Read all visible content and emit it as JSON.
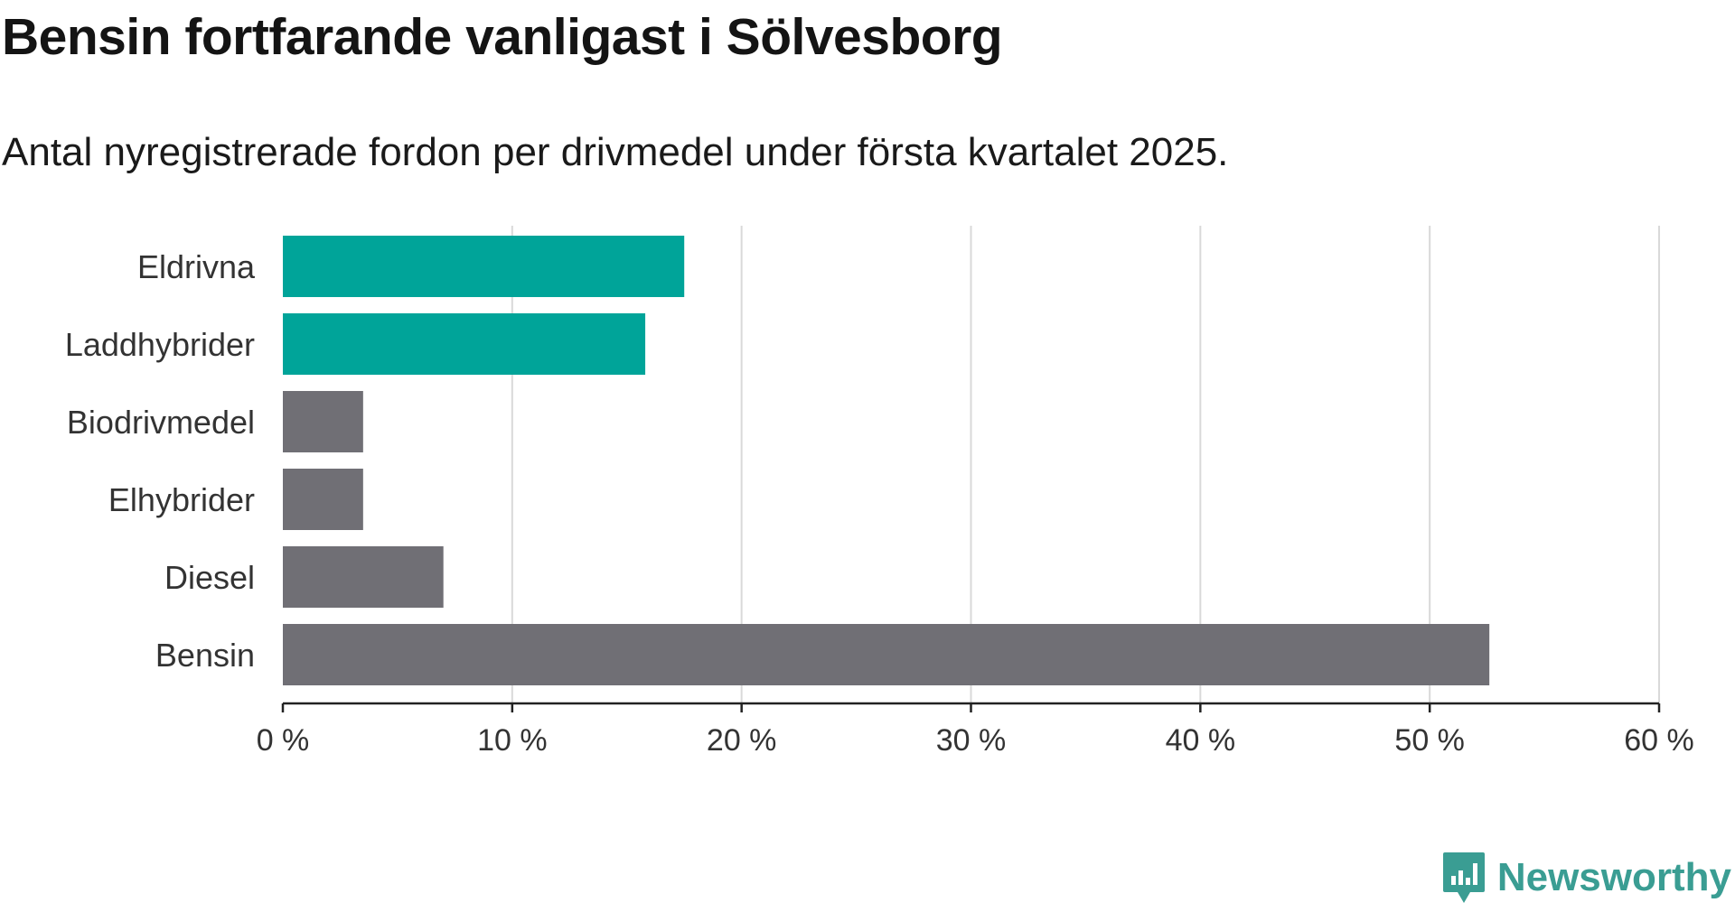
{
  "title": "Bensin fortfarande vanligast i Sölvesborg",
  "subtitle": "Antal nyregistrerade fordon per drivmedel under första kvartalet 2025.",
  "brand": {
    "name": "Newsworthy",
    "icon": "newsworthy-logo-icon",
    "color": "#3a9d93"
  },
  "colors": {
    "highlight": "#00a499",
    "default": "#706f75",
    "grid": "#d9d9d9",
    "axis": "#222222",
    "label": "#333333"
  },
  "chart_data": {
    "type": "bar",
    "orientation": "horizontal",
    "categories": [
      "Eldrivna",
      "Laddhybrider",
      "Biodrivmedel",
      "Elhybrider",
      "Diesel",
      "Bensin"
    ],
    "values": [
      17.5,
      15.8,
      3.5,
      3.5,
      7.0,
      52.6
    ],
    "highlighted": [
      true,
      true,
      false,
      false,
      false,
      false
    ],
    "xlim": [
      0,
      60
    ],
    "xticks": [
      0,
      10,
      20,
      30,
      40,
      50,
      60
    ],
    "xtick_labels": [
      "0 %",
      "10 %",
      "20 %",
      "30 %",
      "40 %",
      "50 %",
      "60 %"
    ],
    "unit": "%",
    "grid": true
  }
}
